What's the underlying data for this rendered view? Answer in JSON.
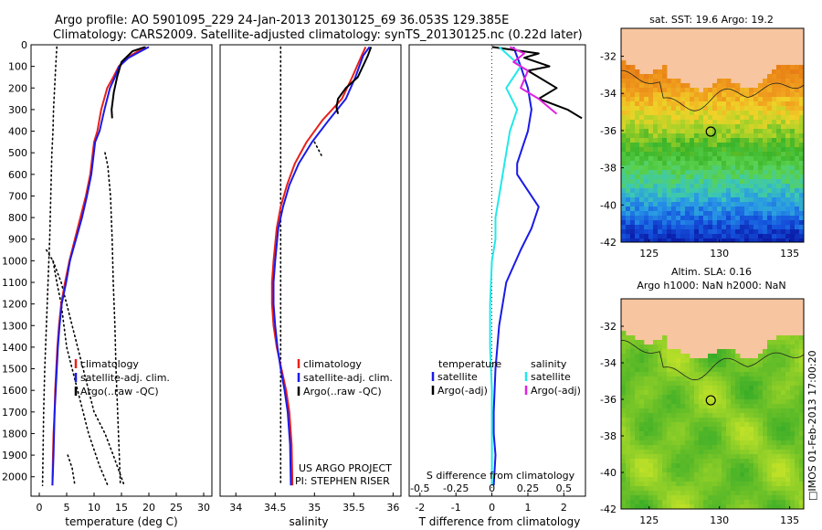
{
  "header": {
    "line1": "Argo profile: AO 5901095_229 24-Jan-2013 20130125_69 36.053S 129.385E",
    "line2": "Climatology: CARS2009. Satellite-adjusted climatology: synTS_20130125.nc (0.22d later)"
  },
  "credits": {
    "project": "US ARGO PROJECT",
    "pi": "PI: STEPHEN RISER",
    "vertical": "□IMOS 01-Feb-2013 17:00:20"
  },
  "colors": {
    "climatology": "#e8201a",
    "satellite_adj": "#1a1ae8",
    "argo": "#000000",
    "salinity_sat": "#22e8e8",
    "salinity_argo": "#e020e0",
    "land": "#f7c59f"
  },
  "chart_data": [
    {
      "type": "line",
      "id": "temperature",
      "xlabel": "temperature (deg C)",
      "xlim": [
        -1.5,
        31.5
      ],
      "ylim": [
        2090,
        0
      ],
      "xticks": [
        0,
        5,
        10,
        15,
        20,
        25,
        30
      ],
      "yticks": [
        0,
        100,
        200,
        300,
        400,
        500,
        600,
        700,
        800,
        900,
        1000,
        1100,
        1200,
        1300,
        1400,
        1500,
        1600,
        1700,
        1800,
        1900,
        2000
      ],
      "legend": [
        "climatology",
        "satellite-adj. clim.",
        "Argo(..raw -QC)"
      ],
      "legend_position": "center-right",
      "series": [
        {
          "name": "climatology",
          "color_key": "climatology",
          "x": [
            19.5,
            18.0,
            16.0,
            14.5,
            13.5,
            12.4,
            11.3,
            10.6,
            10.0,
            9.3,
            8.5,
            7.5,
            6.5,
            5.5,
            4.7,
            4.0,
            3.6,
            3.3,
            3.1,
            2.9,
            2.8,
            2.6,
            2.5,
            2.4
          ],
          "y": [
            10,
            30,
            60,
            100,
            150,
            200,
            300,
            400,
            450,
            600,
            700,
            800,
            900,
            1000,
            1100,
            1200,
            1300,
            1400,
            1500,
            1600,
            1700,
            1800,
            1900,
            2040
          ]
        },
        {
          "name": "satellite-adj. clim.",
          "color_key": "satellite_adj",
          "x": [
            20.0,
            18.5,
            16.3,
            14.6,
            13.8,
            12.9,
            11.9,
            11.0,
            10.2,
            9.5,
            8.7,
            7.8,
            6.7,
            5.6,
            4.9,
            4.1,
            3.7,
            3.4,
            3.2,
            3.0,
            2.8,
            2.7,
            2.6,
            2.4
          ],
          "y": [
            10,
            30,
            60,
            100,
            150,
            200,
            300,
            400,
            450,
            600,
            700,
            800,
            900,
            1000,
            1100,
            1200,
            1300,
            1400,
            1500,
            1600,
            1700,
            1800,
            1900,
            2040
          ]
        },
        {
          "name": "Argo(..raw -QC)",
          "color_key": "argo",
          "x": [
            19.3,
            17.0,
            15.0,
            14.2,
            13.6,
            13.2,
            13.3
          ],
          "y": [
            10,
            30,
            80,
            150,
            220,
            300,
            340
          ]
        }
      ],
      "envelopes": [
        {
          "style": "dotted",
          "x": [
            3.2,
            3.0,
            2.8,
            2.6,
            2.5,
            2.3,
            2.1,
            1.9,
            1.6,
            1.3,
            1.0,
            0.8,
            0.6
          ],
          "y": [
            10,
            100,
            200,
            300,
            400,
            500,
            700,
            900,
            1100,
            1300,
            1500,
            1700,
            2040
          ]
        },
        {
          "style": "dotted",
          "x": [
            12.0,
            12.5,
            13.0,
            13.3,
            13.5,
            13.8,
            14.0,
            14.3,
            14.6,
            14.8
          ],
          "y": [
            500,
            560,
            700,
            900,
            1100,
            1300,
            1500,
            1700,
            1900,
            2040
          ]
        },
        {
          "style": "dotted",
          "x": [
            1.3,
            2.5,
            3.2,
            4.0,
            5.0,
            7.0,
            9.0,
            11.0,
            12.5
          ],
          "y": [
            950,
            1000,
            1100,
            1200,
            1400,
            1600,
            1800,
            1950,
            2040
          ]
        },
        {
          "style": "dotted",
          "x": [
            2.5,
            4.0,
            6.0,
            8.0,
            10.0,
            12.0,
            13.5,
            15.5
          ],
          "y": [
            1000,
            1100,
            1300,
            1500,
            1700,
            1800,
            1900,
            2040
          ]
        },
        {
          "style": "dotted",
          "x": [
            5.2,
            6.0,
            6.5
          ],
          "y": [
            1900,
            1960,
            2040
          ]
        }
      ]
    },
    {
      "type": "line",
      "id": "salinity",
      "xlabel": "salinity",
      "xlim": [
        33.8,
        36.1
      ],
      "ylim": [
        2090,
        0
      ],
      "xticks": [
        34,
        34.5,
        35,
        35.5,
        36
      ],
      "legend": [
        "climatology",
        "satellite-adj. clim.",
        "Argo(..raw -QC)"
      ],
      "legend_position": "center-right",
      "series": [
        {
          "name": "climatology",
          "color_key": "climatology",
          "x": [
            35.65,
            35.6,
            35.48,
            35.35,
            35.1,
            34.9,
            34.75,
            34.65,
            34.57,
            34.52,
            34.48,
            34.46,
            34.46,
            34.48,
            34.52,
            34.58,
            34.64,
            34.68,
            34.71,
            34.72
          ],
          "y": [
            10,
            50,
            150,
            250,
            350,
            450,
            550,
            650,
            750,
            850,
            1000,
            1100,
            1200,
            1300,
            1400,
            1500,
            1600,
            1700,
            1850,
            2040
          ]
        },
        {
          "name": "satellite-adj. clim.",
          "color_key": "satellite_adj",
          "x": [
            35.7,
            35.62,
            35.52,
            35.4,
            35.18,
            34.97,
            34.8,
            34.68,
            34.6,
            34.54,
            34.5,
            34.48,
            34.48,
            34.5,
            34.53,
            34.57,
            34.62,
            34.66,
            34.69,
            34.7
          ],
          "y": [
            10,
            50,
            150,
            250,
            350,
            450,
            550,
            650,
            750,
            850,
            1000,
            1100,
            1200,
            1300,
            1400,
            1500,
            1600,
            1700,
            1850,
            2040
          ]
        },
        {
          "name": "Argo(..raw -QC)",
          "color_key": "argo",
          "x": [
            35.72,
            35.68,
            35.55,
            35.4,
            35.3,
            35.28,
            35.3
          ],
          "y": [
            10,
            50,
            150,
            200,
            250,
            290,
            320
          ]
        }
      ],
      "envelopes": [
        {
          "style": "dotted",
          "x": [
            34.57,
            34.57,
            34.57,
            34.57
          ],
          "y": [
            10,
            700,
            1400,
            2040
          ]
        },
        {
          "style": "dotted",
          "x": [
            35.0,
            35.1
          ],
          "y": [
            450,
            520
          ]
        }
      ]
    },
    {
      "type": "line",
      "id": "difference",
      "xlabel": "T difference from climatology",
      "top_xlabel": "S difference from climatology",
      "xlim": [
        -2.3,
        2.6
      ],
      "ylim": [
        2090,
        0
      ],
      "xticks": [
        -2,
        -1,
        0,
        1,
        2
      ],
      "top_tick_labels": [
        "-0.5",
        "-0.25",
        "0",
        "0.25",
        "0.5"
      ],
      "top_tick_positions": [
        -2,
        -1,
        0,
        1,
        2
      ],
      "legend_headers": [
        "temperature",
        "salinity"
      ],
      "legend": [
        "satellite",
        "Argo(-adj)",
        "satellite",
        "Argo(-adj)"
      ],
      "legend_position": "center",
      "series": [
        {
          "name": "temperature satellite",
          "color_key": "satellite_adj",
          "x": [
            0.6,
            0.8,
            1.0,
            1.1,
            1.0,
            0.9,
            0.8,
            0.7,
            0.7,
            0.9,
            1.3,
            1.1,
            0.8,
            0.4,
            0.2,
            0.1,
            0.05,
            0.05,
            0.1,
            0.05
          ],
          "y": [
            10,
            100,
            200,
            300,
            400,
            450,
            500,
            550,
            600,
            650,
            750,
            850,
            950,
            1100,
            1300,
            1500,
            1700,
            1800,
            1900,
            2040
          ]
        },
        {
          "name": "temperature Argo(-adj)",
          "color_key": "argo",
          "x": [
            0.0,
            1.3,
            0.9,
            1.6,
            1.0,
            1.8,
            1.3,
            2.1,
            2.5
          ],
          "y": [
            10,
            40,
            60,
            100,
            120,
            200,
            250,
            300,
            340
          ]
        },
        {
          "name": "salinity satellite",
          "color_key": "salinity_sat",
          "x": [
            0.2,
            0.8,
            0.4,
            0.7,
            0.5,
            0.4,
            0.3,
            0.2,
            0.1,
            0.1,
            0.0,
            -0.05,
            -0.05,
            0.0,
            0.0,
            0.0,
            0.0
          ],
          "y": [
            10,
            100,
            200,
            300,
            400,
            500,
            600,
            700,
            800,
            900,
            1000,
            1200,
            1400,
            1600,
            1800,
            1900,
            2040
          ]
        },
        {
          "name": "salinity Argo(-adj)",
          "color_key": "salinity_argo",
          "x": [
            0.5,
            0.9,
            0.6,
            1.0,
            0.8,
            1.3,
            1.8
          ],
          "y": [
            10,
            40,
            80,
            120,
            200,
            250,
            320
          ]
        }
      ]
    },
    {
      "type": "heatmap",
      "id": "sst_map",
      "title": "sat. SST: 19.6 Argo: 19.2",
      "xlim": [
        123,
        136
      ],
      "ylim": [
        -42,
        -30.5
      ],
      "xticks": [
        125,
        130,
        135
      ],
      "yticks": [
        -32,
        -34,
        -36,
        -38,
        -40,
        -42
      ],
      "marker": {
        "lon": 129.385,
        "lat": -36.053
      }
    },
    {
      "type": "heatmap",
      "id": "sla_map",
      "title": "Altim. SLA: 0.16",
      "title2": "Argo h1000: NaN h2000: NaN",
      "xlim": [
        123,
        136
      ],
      "ylim": [
        -42,
        -30.5
      ],
      "xticks": [
        125,
        130,
        135
      ],
      "yticks": [
        -32,
        -34,
        -36,
        -38,
        -40,
        -42
      ],
      "marker": {
        "lon": 129.385,
        "lat": -36.053
      }
    }
  ]
}
